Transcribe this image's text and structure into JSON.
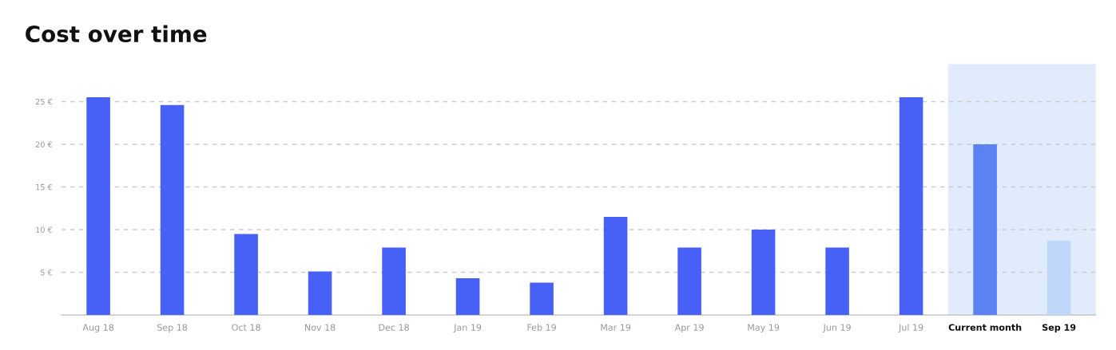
{
  "chart_data": {
    "type": "bar",
    "title": "Cost over time",
    "categories": [
      "Aug 18",
      "Sep 18",
      "Oct 18",
      "Nov 18",
      "Dec 18",
      "Jan 19",
      "Feb 19",
      "Mar 19",
      "Apr 19",
      "May 19",
      "Jun 19",
      "Jul 19",
      "Current month",
      "Sep 19"
    ],
    "values": [
      25.5,
      24.6,
      9.5,
      5.1,
      7.9,
      4.3,
      3.8,
      11.5,
      7.9,
      10.0,
      7.9,
      25.5,
      20.0,
      8.7
    ],
    "colors": [
      "#4760f5",
      "#4760f5",
      "#4760f5",
      "#4760f5",
      "#4760f5",
      "#4760f5",
      "#4760f5",
      "#4760f5",
      "#4760f5",
      "#4760f5",
      "#4760f5",
      "#4760f5",
      "#5b82f2",
      "#bfd7fb"
    ],
    "ylim": [
      0,
      29.4
    ],
    "yticks": [
      {
        "value": 5,
        "label": "5 €"
      },
      {
        "value": 10,
        "label": "10 €"
      },
      {
        "value": 15,
        "label": "15 €"
      },
      {
        "value": 20,
        "label": "20 €"
      },
      {
        "value": 25,
        "label": "25 €"
      }
    ],
    "bands": [
      {
        "axis": "x",
        "from": "Current month",
        "to": "Sep 19",
        "color": "#e0ecfb"
      }
    ],
    "grid": "y"
  }
}
